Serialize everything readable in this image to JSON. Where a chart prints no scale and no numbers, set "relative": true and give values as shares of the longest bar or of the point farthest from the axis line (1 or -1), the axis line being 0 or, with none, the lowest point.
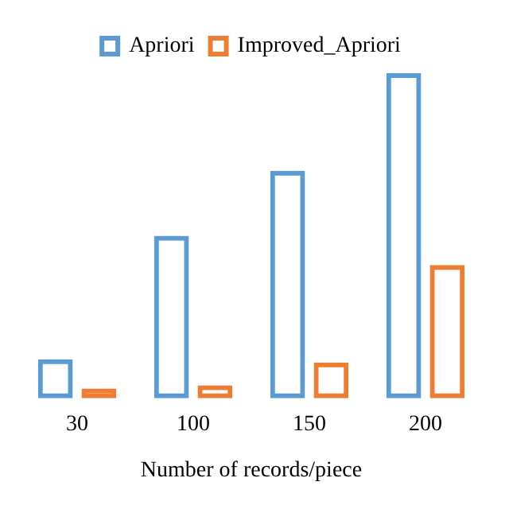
{
  "chart_data": {
    "type": "bar",
    "relative": true,
    "xlabel": "Number of records/piece",
    "categories": [
      "30",
      "100",
      "150",
      "200"
    ],
    "legend": "top",
    "grid": false,
    "series": [
      {
        "name": "Apriori",
        "color": "#5b9bd5",
        "values": [
          0.12,
          0.5,
          0.7,
          1
        ]
      },
      {
        "name": "Improved_Apriori",
        "color": "#ed7d31",
        "values": [
          0.03,
          0.04,
          0.11,
          0.41
        ]
      }
    ]
  }
}
